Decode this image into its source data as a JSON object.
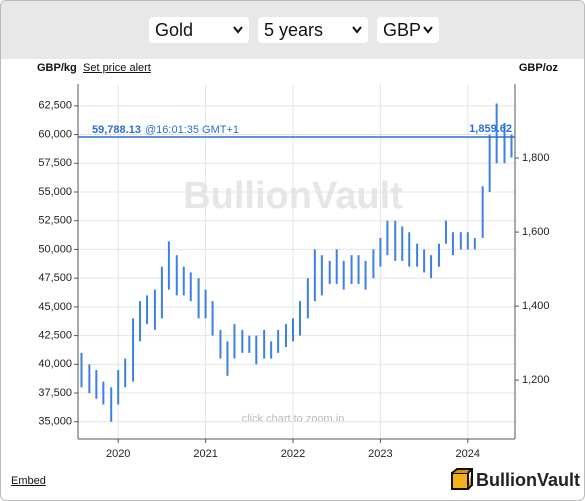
{
  "controls": {
    "metal": "Gold",
    "period": "5 years",
    "currency": "GBP"
  },
  "links": {
    "alert": "Set price alert",
    "embed": "Embed"
  },
  "brand": "BullionVault",
  "chart_data": {
    "type": "range-bar",
    "y_label": "GBP/kg",
    "y2_label": "GBP/oz",
    "watermark": "BullionVault",
    "hint": "click chart to zoom in",
    "color": "#3d80e3",
    "x": [
      2019.58,
      2019.67,
      2019.75,
      2019.83,
      2019.92,
      2020.0,
      2020.08,
      2020.17,
      2020.25,
      2020.33,
      2020.42,
      2020.5,
      2020.58,
      2020.67,
      2020.75,
      2020.83,
      2020.92,
      2021.0,
      2021.08,
      2021.17,
      2021.25,
      2021.33,
      2021.42,
      2021.5,
      2021.58,
      2021.67,
      2021.75,
      2021.83,
      2021.92,
      2022.0,
      2022.08,
      2022.17,
      2022.25,
      2022.33,
      2022.42,
      2022.5,
      2022.58,
      2022.67,
      2022.75,
      2022.83,
      2022.92,
      2023.0,
      2023.08,
      2023.17,
      2023.25,
      2023.33,
      2023.42,
      2023.5,
      2023.58,
      2023.67,
      2023.75,
      2023.83,
      2023.92,
      2024.0,
      2024.08,
      2024.17,
      2024.25,
      2024.33,
      2024.42,
      2024.5
    ],
    "low": [
      38000,
      37500,
      37000,
      36500,
      35000,
      36500,
      38000,
      38500,
      42000,
      43500,
      43000,
      44000,
      46500,
      46000,
      46000,
      45500,
      44000,
      44000,
      42500,
      40500,
      39000,
      40500,
      41000,
      41000,
      40000,
      40500,
      40500,
      41000,
      41500,
      42000,
      42500,
      44000,
      45500,
      46000,
      47000,
      47000,
      46500,
      47000,
      47000,
      46500,
      47500,
      48500,
      49500,
      49000,
      49000,
      48500,
      48500,
      48000,
      47500,
      48500,
      50500,
      49500,
      50000,
      50000,
      50000,
      51000,
      55000,
      57500,
      57500,
      58000
    ],
    "high": [
      41000,
      40000,
      39500,
      38500,
      38000,
      39500,
      40500,
      44000,
      45500,
      46000,
      46500,
      48500,
      50700,
      49500,
      48500,
      48000,
      47500,
      46500,
      45500,
      43000,
      42000,
      43500,
      43000,
      42500,
      42500,
      43000,
      42000,
      43000,
      43500,
      44000,
      45500,
      47500,
      50000,
      49500,
      49000,
      50000,
      49000,
      49500,
      49500,
      49000,
      50000,
      51000,
      52500,
      52500,
      52000,
      51500,
      50500,
      50000,
      49500,
      50500,
      52500,
      51500,
      51500,
      51500,
      51000,
      55500,
      60000,
      62700,
      61000,
      60000
    ],
    "xlim": [
      2019.54,
      2024.54
    ],
    "xticks": [
      2020,
      2021,
      2022,
      2023,
      2024
    ],
    "ylim": [
      33500,
      64400
    ],
    "yticks": [
      {
        "value": 35000,
        "label": "35,000"
      },
      {
        "value": 37500,
        "label": "37,500"
      },
      {
        "value": 40000,
        "label": "40,000"
      },
      {
        "value": 42500,
        "label": "42,500"
      },
      {
        "value": 45000,
        "label": "45,000"
      },
      {
        "value": 47500,
        "label": "47,500"
      },
      {
        "value": 50000,
        "label": "50,000"
      },
      {
        "value": 52500,
        "label": "52,500"
      },
      {
        "value": 55000,
        "label": "55,000"
      },
      {
        "value": 57500,
        "label": "57,500"
      },
      {
        "value": 60000,
        "label": "60,000"
      },
      {
        "value": 62500,
        "label": "62,500"
      }
    ],
    "y2lim": [
      1041,
      2000
    ],
    "y2ticks": [
      {
        "value": 1200,
        "label": "1,200"
      },
      {
        "value": 1400,
        "label": "1,400"
      },
      {
        "value": 1600,
        "label": "1,600"
      },
      {
        "value": 1800,
        "label": "1,800"
      }
    ],
    "current": {
      "value": 59788.13,
      "label": "59,788.13",
      "time": "@16:01:35 GMT+1",
      "value_oz": 1859.62,
      "label_oz": "1,859.62",
      "color": "#2b6fd6"
    }
  }
}
